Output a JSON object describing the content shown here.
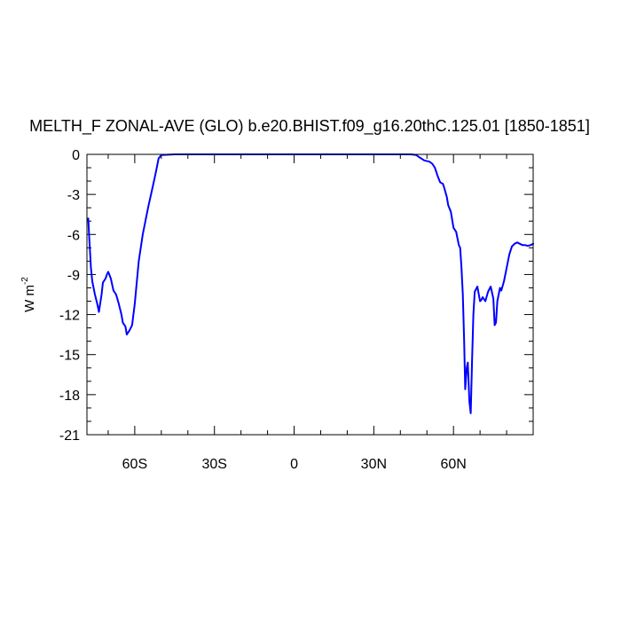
{
  "chart_data": {
    "type": "line",
    "title": "MELTH_F ZONAL-AVE (GLO) b.e20.BHIST.f09_g16.20thC.125.01 [1850-1851]",
    "ylabel": "W m",
    "ylabel_superscript": "-2",
    "xlim": [
      -78,
      90
    ],
    "ylim": [
      -21,
      0
    ],
    "x_ticks": [
      {
        "value": -60,
        "label": "60S"
      },
      {
        "value": -30,
        "label": "30S"
      },
      {
        "value": 0,
        "label": "0"
      },
      {
        "value": 30,
        "label": "30N"
      },
      {
        "value": 60,
        "label": "60N"
      }
    ],
    "y_ticks": [
      {
        "value": 0,
        "label": "0"
      },
      {
        "value": -3,
        "label": "-3"
      },
      {
        "value": -6,
        "label": "-6"
      },
      {
        "value": -9,
        "label": "-9"
      },
      {
        "value": -12,
        "label": "-12"
      },
      {
        "value": -15,
        "label": "-15"
      },
      {
        "value": -18,
        "label": "-18"
      },
      {
        "value": -21,
        "label": "-21"
      }
    ],
    "series": [
      {
        "color": "#0000ff",
        "x": [
          -77.5,
          -77.2,
          -76.5,
          -76,
          -75,
          -74,
          -73.5,
          -72.5,
          -72,
          -71,
          -70.5,
          -70,
          -69,
          -68,
          -67,
          -66,
          -65,
          -64.5,
          -63.5,
          -63,
          -62,
          -61,
          -60,
          -58.5,
          -57,
          -55,
          -53,
          -52,
          -51.5,
          -51,
          -50,
          -45,
          -30,
          0,
          30,
          44,
          46,
          47,
          49,
          51,
          52,
          53,
          54,
          55,
          56,
          56.5,
          57.5,
          58,
          59,
          60,
          61,
          62,
          62.5,
          63,
          63.5,
          64,
          64.4,
          65,
          65.4,
          66,
          66.5,
          67,
          67.5,
          68,
          69,
          70,
          70.5,
          71,
          72,
          73,
          74,
          75,
          75.5,
          76,
          76.5,
          77,
          77.5,
          78,
          79,
          80,
          81,
          82,
          83,
          84,
          85,
          86,
          87,
          88,
          89,
          90
        ],
        "y": [
          -4.8,
          -6,
          -8.5,
          -9.5,
          -10.5,
          -11.3,
          -11.8,
          -10.5,
          -9.6,
          -9.3,
          -9.0,
          -8.8,
          -9.3,
          -10.2,
          -10.5,
          -11.2,
          -12.0,
          -12.6,
          -12.9,
          -13.5,
          -13.2,
          -12.8,
          -11.2,
          -8,
          -6,
          -4,
          -2.2,
          -1.3,
          -0.8,
          -0.3,
          -0.05,
          0,
          0,
          0,
          0,
          0,
          -0.05,
          -0.2,
          -0.45,
          -0.55,
          -0.7,
          -1.0,
          -1.6,
          -2.1,
          -2.2,
          -2.5,
          -3.2,
          -3.8,
          -4.3,
          -5.5,
          -5.8,
          -6.8,
          -7.0,
          -8.5,
          -10.5,
          -14.0,
          -17.6,
          -16.0,
          -15.6,
          -18.5,
          -19.4,
          -15.5,
          -12.0,
          -10.3,
          -9.9,
          -11.0,
          -10.9,
          -10.7,
          -11.0,
          -10.3,
          -9.9,
          -10.8,
          -12.8,
          -12.6,
          -11.0,
          -10.5,
          -10.0,
          -10.2,
          -9.5,
          -8.5,
          -7.5,
          -6.9,
          -6.7,
          -6.6,
          -6.7,
          -6.8,
          -6.8,
          -6.85,
          -6.8,
          -6.7
        ]
      }
    ]
  }
}
